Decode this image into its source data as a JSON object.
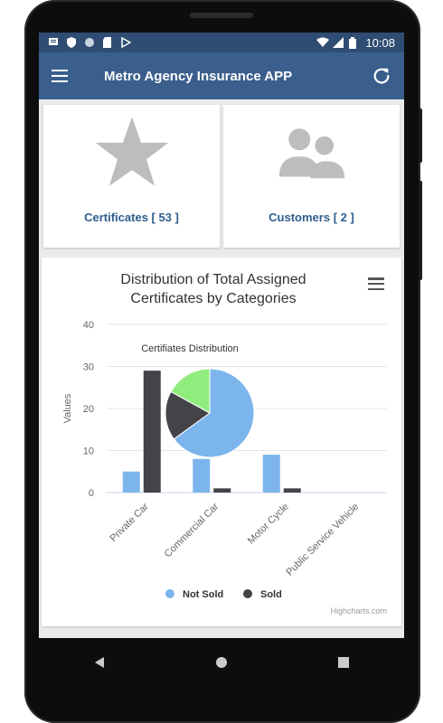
{
  "status": {
    "time": "10:08"
  },
  "appbar": {
    "title": "Metro Agency Insurance APP"
  },
  "cards": [
    {
      "label": "Certificates [ 53 ]",
      "icon": "star-icon"
    },
    {
      "label": "Customers [ 2 ]",
      "icon": "users-icon"
    }
  ],
  "chart": {
    "title_line1": "Distribution of Total Assigned",
    "title_line2": "Certificates by Categories",
    "credits": "Highcharts.com"
  },
  "chart_data": {
    "type": "bar",
    "title": "Distribution of Total Assigned Certificates by Categories",
    "categories": [
      "Private Car",
      "Commercial Car",
      "Motor Cycle",
      "Public Service Vehicle"
    ],
    "series": [
      {
        "name": "Not Sold",
        "color": "#7cb5ec",
        "values": [
          5,
          8,
          9,
          0
        ]
      },
      {
        "name": "Sold",
        "color": "#434348",
        "values": [
          29,
          1,
          1,
          0
        ]
      }
    ],
    "ylabel": "Values",
    "ylim": [
      0,
      40
    ],
    "yticks": [
      0,
      10,
      20,
      30,
      40
    ],
    "legend": "bottom",
    "pie": {
      "title": "Certifiates Distribution",
      "slices": [
        {
          "value": 65,
          "color": "#7cb5ec"
        },
        {
          "value": 18,
          "color": "#434348"
        },
        {
          "value": 17,
          "color": "#90ed7d"
        }
      ]
    }
  }
}
